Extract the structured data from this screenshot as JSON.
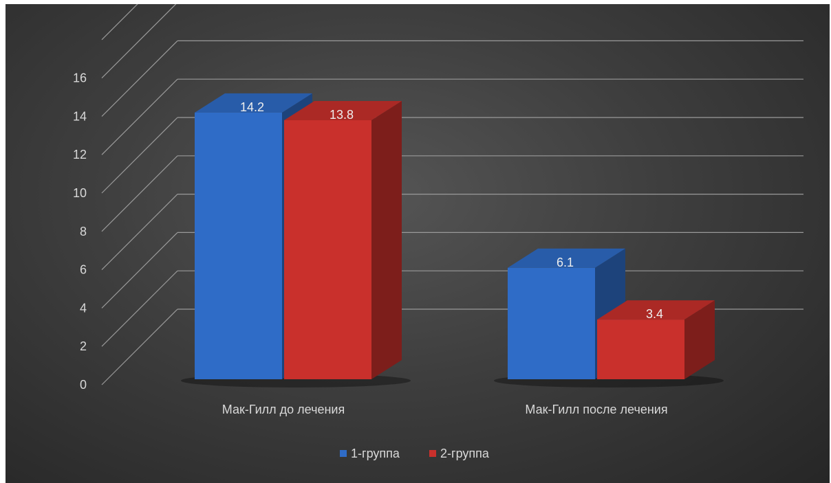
{
  "chart_data": {
    "type": "bar",
    "style": "3d-clustered-column",
    "categories": [
      "Мак-Гилл до лечения",
      "Мак-Гилл после лечения"
    ],
    "series": [
      {
        "name": "1-группа",
        "values": [
          14.2,
          6.1
        ],
        "color": "#2f6cc7"
      },
      {
        "name": "2-группа",
        "values": [
          13.8,
          3.4
        ],
        "color": "#c9302c"
      }
    ],
    "y_ticks": [
      "0",
      "2",
      "4",
      "6",
      "8",
      "10",
      "12",
      "14",
      "16"
    ],
    "ylim": [
      0,
      18
    ],
    "title": "",
    "xlabel": "",
    "ylabel": "",
    "grid": true,
    "legend_position": "bottom",
    "data_labels": true,
    "background": "#3a3a3a"
  }
}
